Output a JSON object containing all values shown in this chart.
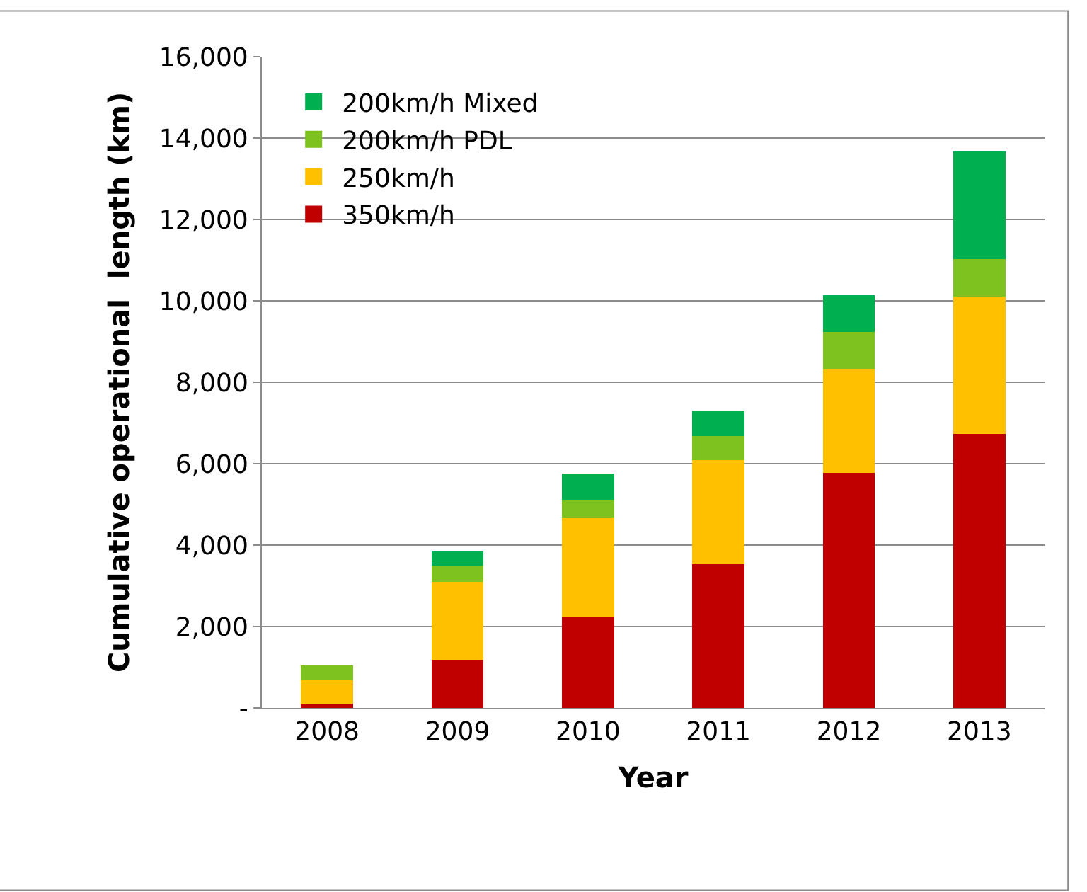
{
  "chart_data": {
    "type": "bar",
    "stacked": true,
    "xlabel": "Year",
    "ylabel": "Cumulative operational  length (km)",
    "categories": [
      "2008",
      "2009",
      "2010",
      "2011",
      "2012",
      "2013"
    ],
    "series": [
      {
        "name": "350km/h",
        "color": "#c00000",
        "values": [
          110,
          1190,
          2220,
          3530,
          5780,
          6730
        ]
      },
      {
        "name": "250km/h",
        "color": "#ffc000",
        "values": [
          560,
          1900,
          2450,
          2550,
          2550,
          3380
        ]
      },
      {
        "name": "200km/h PDL",
        "color": "#7dc21e",
        "values": [
          380,
          400,
          440,
          600,
          910,
          910
        ]
      },
      {
        "name": "200km/h Mixed",
        "color": "#00b050",
        "values": [
          0,
          350,
          640,
          630,
          900,
          2650
        ]
      }
    ],
    "ylim": [
      0,
      16000
    ],
    "yticks": [
      {
        "value": 0,
        "label": "-"
      },
      {
        "value": 2000,
        "label": "2,000"
      },
      {
        "value": 4000,
        "label": "4,000"
      },
      {
        "value": 6000,
        "label": "6,000"
      },
      {
        "value": 8000,
        "label": "8,000"
      },
      {
        "value": 10000,
        "label": "10,000"
      },
      {
        "value": 12000,
        "label": "12,000"
      },
      {
        "value": 14000,
        "label": "14,000"
      },
      {
        "value": 16000,
        "label": "16,000"
      }
    ],
    "grid": "y",
    "legend": "top left"
  }
}
